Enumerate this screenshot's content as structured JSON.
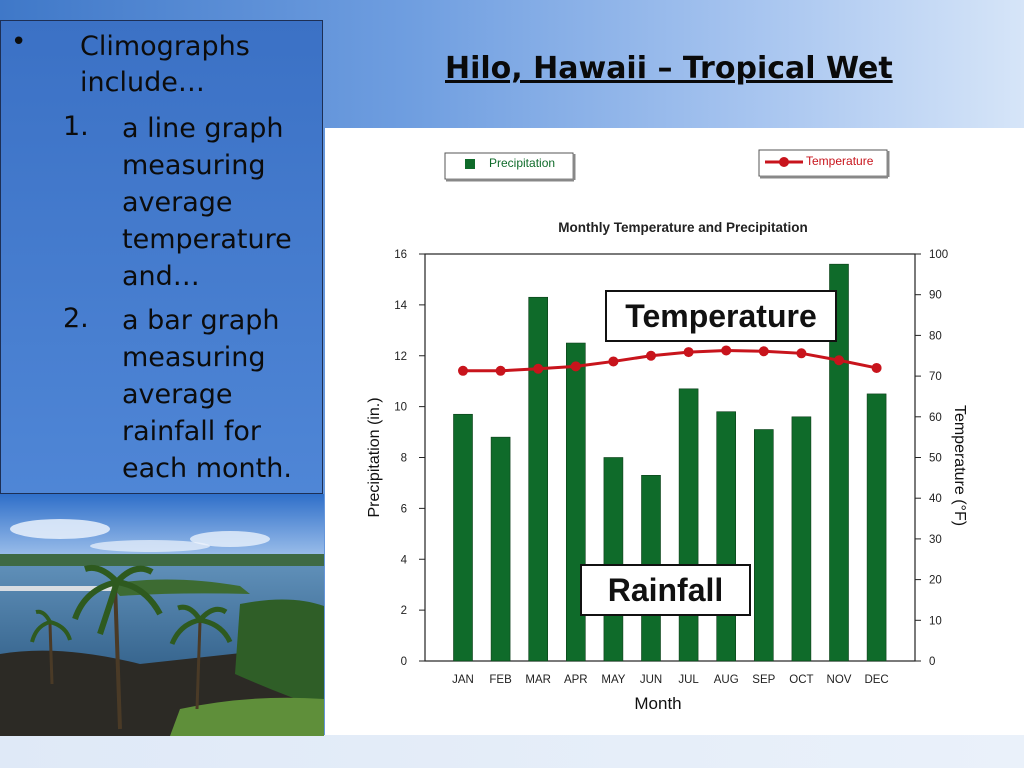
{
  "slide": {
    "title": "Hilo, Hawaii – Tropical Wet",
    "bullet": "•",
    "bullet_text": "Climographs include…",
    "items": [
      {
        "num": "1.",
        "text": "a line graph measuring average temperature and…"
      },
      {
        "num": "2.",
        "text": "a bar graph measuring average rainfall for each month."
      }
    ],
    "callouts": {
      "temperature": "Temperature",
      "rainfall": "Rainfall"
    }
  },
  "colors": {
    "bar": "#0f6b2a",
    "line": "#c8141c",
    "accent": "#3b71c5"
  },
  "photo_icon": "coastal-photo-icon",
  "chart_data": {
    "type": "bar",
    "title": "Monthly Temperature and Precipitation",
    "xlabel": "Month",
    "ylabel": "Precipitation (in.)",
    "y2label": "Temperature (°F)",
    "categories": [
      "JAN",
      "FEB",
      "MAR",
      "APR",
      "MAY",
      "JUN",
      "JUL",
      "AUG",
      "SEP",
      "OCT",
      "NOV",
      "DEC"
    ],
    "ylim": [
      0,
      16
    ],
    "yticks": [
      0,
      2,
      4,
      6,
      8,
      10,
      12,
      14,
      16
    ],
    "y2lim": [
      0,
      100
    ],
    "y2ticks": [
      0,
      10,
      20,
      30,
      40,
      50,
      60,
      70,
      80,
      90,
      100
    ],
    "grid": false,
    "legend": [
      "Precipitation",
      "Temperature"
    ],
    "series": [
      {
        "name": "Precipitation",
        "type": "bar",
        "axis": "left",
        "values": [
          9.7,
          8.8,
          14.3,
          12.5,
          8.0,
          7.3,
          10.7,
          9.8,
          9.1,
          9.6,
          15.6,
          10.5
        ]
      },
      {
        "name": "Temperature",
        "type": "line",
        "axis": "right",
        "values": [
          71.3,
          71.3,
          71.8,
          72.4,
          73.6,
          75.0,
          75.9,
          76.3,
          76.1,
          75.6,
          73.9,
          72.0
        ]
      }
    ]
  }
}
